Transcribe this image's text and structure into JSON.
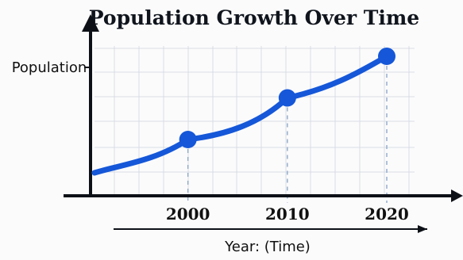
{
  "chart_data": {
    "type": "line",
    "title": "Population Growth Over Time",
    "xlabel": "Year: (Time)",
    "ylabel": "Population",
    "categories": [
      "2000",
      "2010",
      "2020"
    ],
    "x": [
      2000,
      2010,
      2020
    ],
    "series": [
      {
        "values": [
          1.0,
          2.0,
          3.0
        ]
      }
    ],
    "grid": true,
    "legend": "none",
    "colors": {
      "line": "#1557d8",
      "axis": "#0d1117",
      "grid": "#d8dde5",
      "guides": "#8fa8c8",
      "background": "#fbfbfc"
    }
  }
}
